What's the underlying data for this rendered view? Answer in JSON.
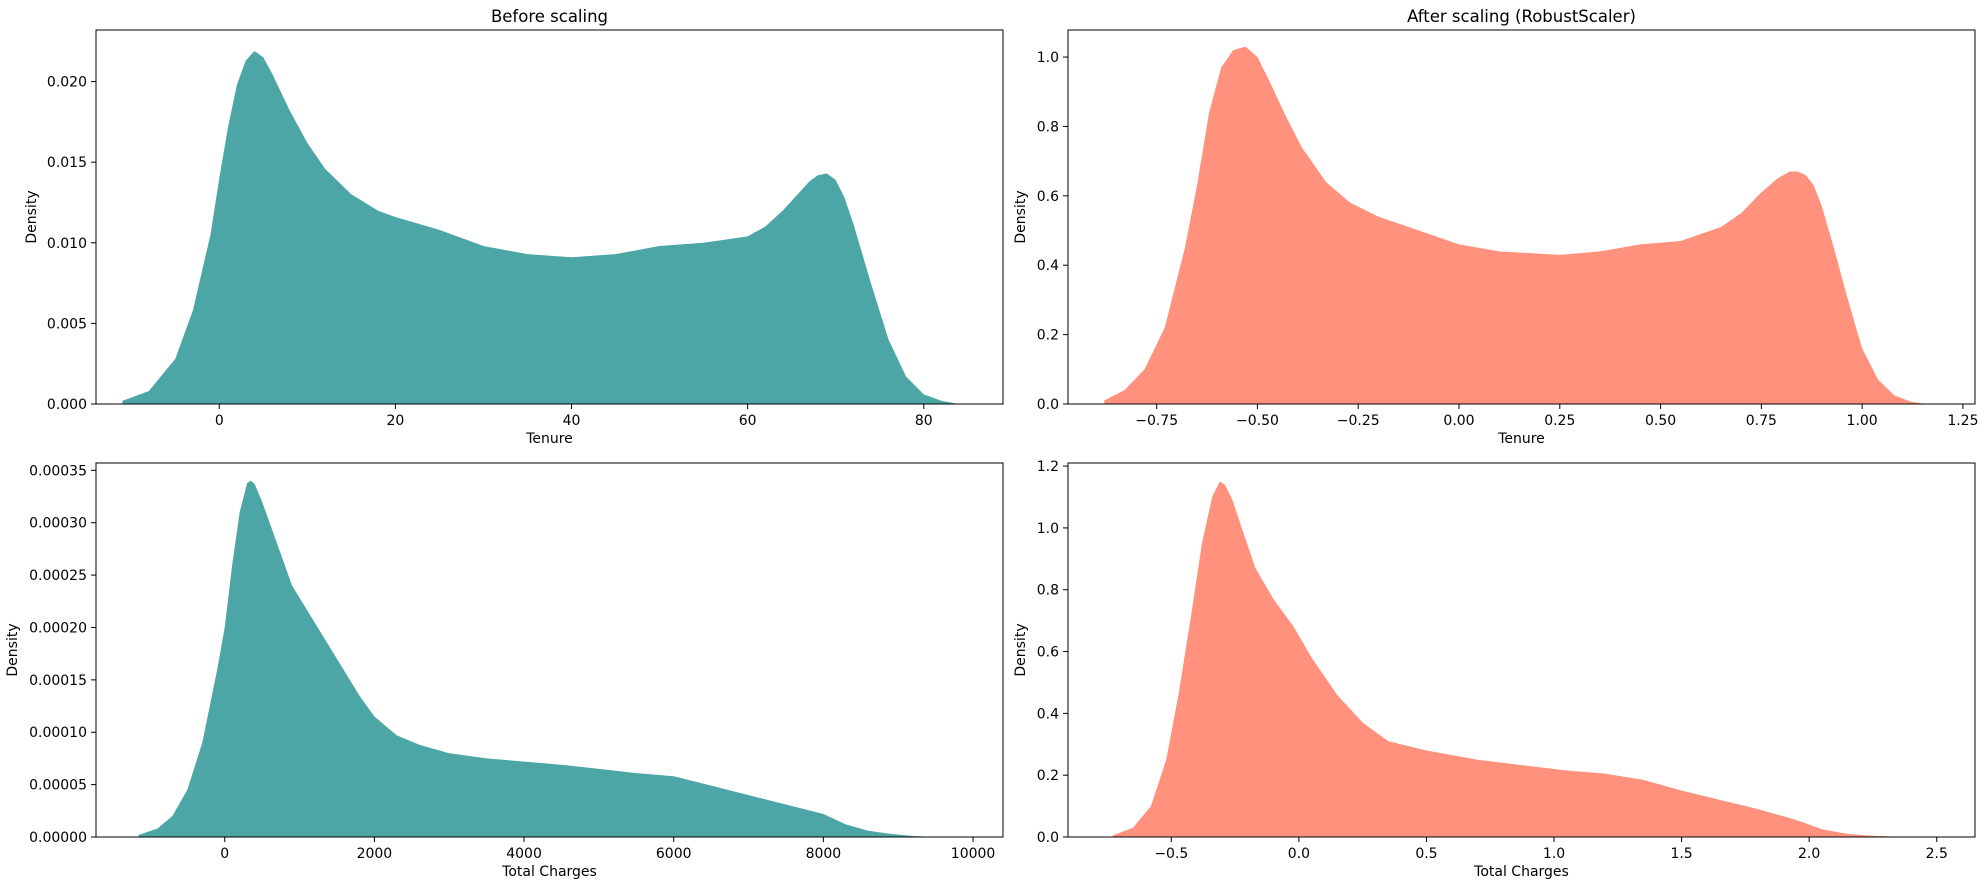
{
  "chart_data": [
    {
      "type": "area",
      "title": "Before scaling",
      "xlabel": "Tenure",
      "ylabel": "Density",
      "color": "#4DA6A6",
      "xlim": [
        -14,
        89
      ],
      "ylim": [
        0,
        0.0232
      ],
      "x_ticks": [
        0,
        20,
        40,
        60,
        80
      ],
      "x_tick_labels": [
        "0",
        "20",
        "40",
        "60",
        "80"
      ],
      "y_ticks": [
        0,
        0.005,
        0.01,
        0.015,
        0.02
      ],
      "y_tick_labels": [
        "0.000",
        "0.005",
        "0.010",
        "0.015",
        "0.020"
      ],
      "curve": {
        "x": [
          -11,
          -8,
          -5,
          -3,
          -1,
          0,
          1,
          2,
          3,
          4,
          5,
          6,
          8,
          10,
          12,
          15,
          18,
          20,
          25,
          30,
          35,
          40,
          45,
          50,
          55,
          60,
          62,
          64,
          66,
          67,
          68,
          69,
          70,
          71,
          72,
          74,
          76,
          78,
          80,
          82,
          84
        ],
        "y": [
          0.0002,
          0.0008,
          0.0028,
          0.0058,
          0.0105,
          0.014,
          0.0172,
          0.0198,
          0.0213,
          0.0219,
          0.0215,
          0.0205,
          0.0182,
          0.0162,
          0.0146,
          0.013,
          0.012,
          0.0116,
          0.0108,
          0.0098,
          0.0093,
          0.0091,
          0.0093,
          0.0098,
          0.01,
          0.0104,
          0.011,
          0.012,
          0.0132,
          0.0138,
          0.0142,
          0.0143,
          0.0139,
          0.0128,
          0.0112,
          0.0075,
          0.004,
          0.0017,
          0.0006,
          0.0002,
          0.0
        ]
      }
    },
    {
      "type": "area",
      "title": "After scaling (RobustScaler)",
      "xlabel": "Tenure",
      "ylabel": "Density",
      "color": "#FF917D",
      "xlim": [
        -0.97,
        1.28
      ],
      "ylim": [
        0,
        1.078
      ],
      "x_ticks": [
        -0.75,
        -0.5,
        -0.25,
        0,
        0.25,
        0.5,
        0.75,
        1.0,
        1.25
      ],
      "x_tick_labels": [
        "−0.75",
        "−0.50",
        "−0.25",
        "0.00",
        "0.25",
        "0.50",
        "0.75",
        "1.00",
        "1.25"
      ],
      "y_ticks": [
        0,
        0.2,
        0.4,
        0.6,
        0.8,
        1.0
      ],
      "y_tick_labels": [
        "0.0",
        "0.2",
        "0.4",
        "0.6",
        "0.8",
        "1.0"
      ],
      "curve": {
        "x": [
          -0.88,
          -0.83,
          -0.78,
          -0.73,
          -0.68,
          -0.65,
          -0.62,
          -0.59,
          -0.56,
          -0.53,
          -0.5,
          -0.47,
          -0.43,
          -0.39,
          -0.33,
          -0.27,
          -0.2,
          -0.1,
          0.0,
          0.1,
          0.25,
          0.35,
          0.45,
          0.55,
          0.65,
          0.7,
          0.75,
          0.79,
          0.82,
          0.84,
          0.86,
          0.88,
          0.9,
          0.93,
          0.96,
          1.0,
          1.04,
          1.08,
          1.12,
          1.16
        ],
        "y": [
          0.01,
          0.04,
          0.1,
          0.22,
          0.45,
          0.63,
          0.84,
          0.97,
          1.02,
          1.03,
          1.0,
          0.93,
          0.83,
          0.74,
          0.64,
          0.58,
          0.54,
          0.5,
          0.46,
          0.44,
          0.43,
          0.44,
          0.46,
          0.47,
          0.51,
          0.55,
          0.61,
          0.65,
          0.67,
          0.67,
          0.66,
          0.63,
          0.57,
          0.45,
          0.32,
          0.16,
          0.07,
          0.025,
          0.007,
          0.0
        ]
      }
    },
    {
      "type": "area",
      "title": "",
      "xlabel": "Total Charges",
      "ylabel": "Density",
      "color": "#4DA6A6",
      "xlim": [
        -1720,
        10400
      ],
      "ylim": [
        0,
        0.000357
      ],
      "x_ticks": [
        0,
        2000,
        4000,
        6000,
        8000,
        10000
      ],
      "x_tick_labels": [
        "0",
        "2000",
        "4000",
        "6000",
        "8000",
        "10000"
      ],
      "y_ticks": [
        0,
        5e-05,
        0.0001,
        0.00015,
        0.0002,
        0.00025,
        0.0003,
        0.00035
      ],
      "y_tick_labels": [
        "0.00000",
        "0.00005",
        "0.00010",
        "0.00015",
        "0.00020",
        "0.00025",
        "0.00030",
        "0.00035"
      ],
      "curve": {
        "x": [
          -1150,
          -900,
          -700,
          -500,
          -300,
          -100,
          0,
          100,
          200,
          300,
          350,
          400,
          500,
          700,
          900,
          1200,
          1500,
          1800,
          2000,
          2300,
          2600,
          3000,
          3500,
          4000,
          4500,
          5000,
          5500,
          6000,
          6500,
          7000,
          7500,
          8000,
          8300,
          8600,
          8900,
          9200,
          9500
        ],
        "y": [
          2e-06,
          8e-06,
          2e-05,
          4.5e-05,
          9e-05,
          0.00016,
          0.0002,
          0.00026,
          0.00031,
          0.000338,
          0.00034,
          0.000337,
          0.00032,
          0.00028,
          0.00024,
          0.000205,
          0.00017,
          0.000135,
          0.000115,
          9.7e-05,
          8.8e-05,
          8e-05,
          7.5e-05,
          7.2e-05,
          6.9e-05,
          6.5e-05,
          6.1e-05,
          5.8e-05,
          4.9e-05,
          4e-05,
          3.1e-05,
          2.2e-05,
          1.2e-05,
          6e-06,
          3e-06,
          1e-06,
          0.0
        ]
      }
    },
    {
      "type": "area",
      "title": "",
      "xlabel": "Total Charges",
      "ylabel": "Density",
      "color": "#FF917D",
      "xlim": [
        -0.905,
        2.65
      ],
      "ylim": [
        0,
        1.21
      ],
      "x_ticks": [
        -0.5,
        0,
        0.5,
        1.0,
        1.5,
        2.0,
        2.5
      ],
      "x_tick_labels": [
        "−0.5",
        "0.0",
        "0.5",
        "1.0",
        "1.5",
        "2.0",
        "2.5"
      ],
      "y_ticks": [
        0,
        0.2,
        0.4,
        0.6,
        0.8,
        1.0,
        1.2
      ],
      "y_tick_labels": [
        "0.0",
        "0.2",
        "0.4",
        "0.6",
        "0.8",
        "1.0",
        "1.2"
      ],
      "curve": {
        "x": [
          -0.73,
          -0.65,
          -0.58,
          -0.52,
          -0.47,
          -0.42,
          -0.38,
          -0.34,
          -0.31,
          -0.29,
          -0.26,
          -0.22,
          -0.17,
          -0.1,
          -0.02,
          0.05,
          0.15,
          0.25,
          0.35,
          0.5,
          0.7,
          0.9,
          1.05,
          1.2,
          1.35,
          1.5,
          1.65,
          1.8,
          1.95,
          2.05,
          2.15,
          2.25,
          2.35,
          2.45
        ],
        "y": [
          0.005,
          0.03,
          0.1,
          0.25,
          0.47,
          0.73,
          0.95,
          1.1,
          1.15,
          1.14,
          1.09,
          0.99,
          0.87,
          0.77,
          0.68,
          0.58,
          0.46,
          0.37,
          0.31,
          0.28,
          0.25,
          0.23,
          0.215,
          0.205,
          0.185,
          0.15,
          0.12,
          0.09,
          0.055,
          0.025,
          0.01,
          0.004,
          0.001,
          0.0
        ]
      }
    }
  ]
}
